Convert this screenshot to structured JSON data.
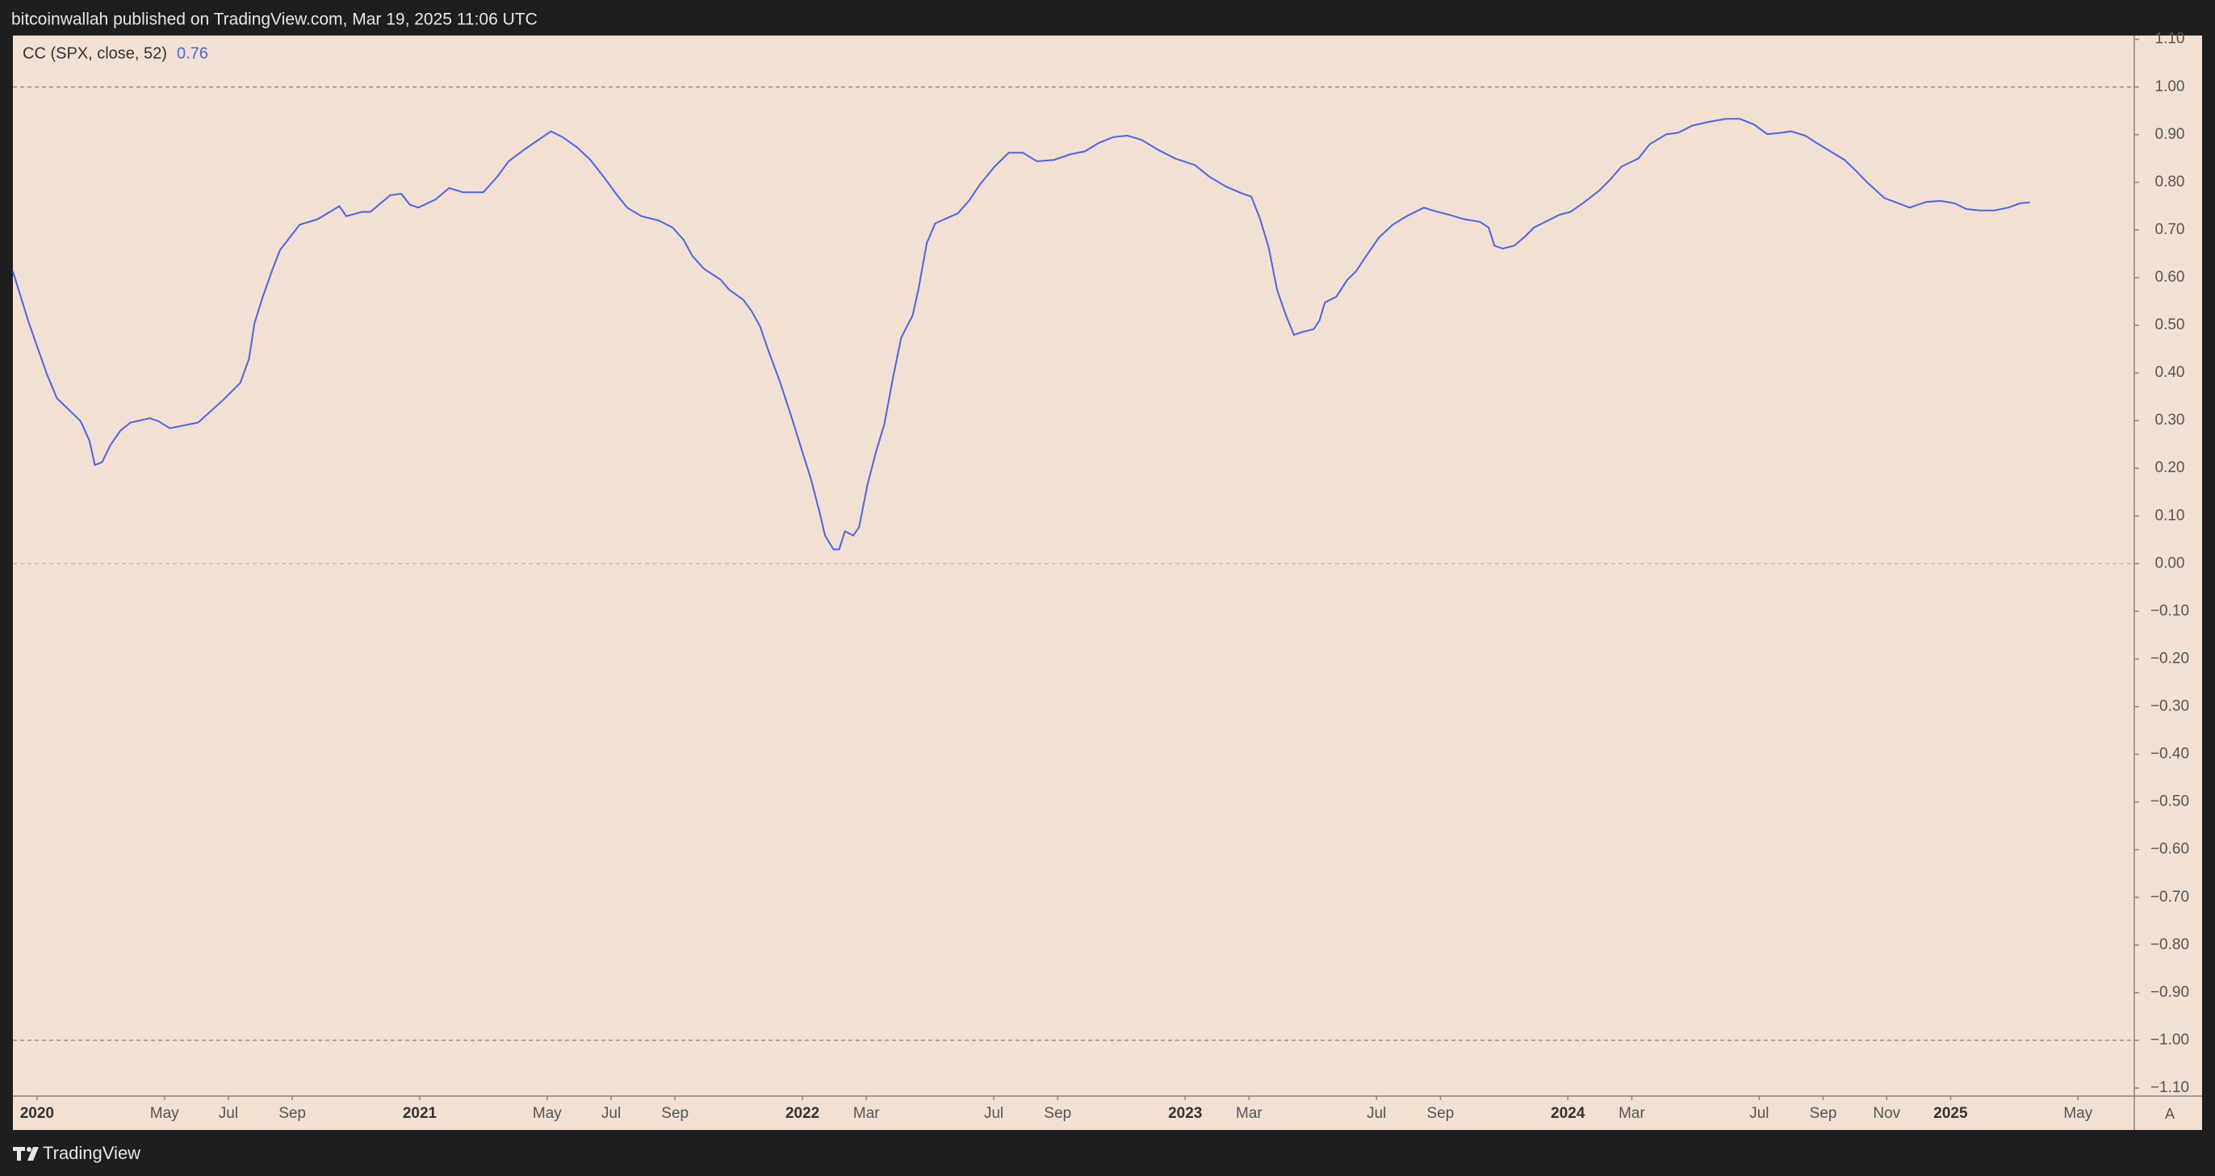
{
  "header": "bitcoinwallah published on TradingView.com, Mar 19, 2025 11:06 UTC",
  "footer": "TradingView",
  "scale_button": "A",
  "chart_data": {
    "type": "line",
    "legend_value": "0.76",
    "background": "#f2e1d3",
    "xlim": [
      2019.937,
      2025.48
    ],
    "ylim": [
      -1.117,
      1.108
    ],
    "hlines": [
      1,
      0,
      -1
    ],
    "xticks": [
      2020,
      {
        "value": 2020.333,
        "label": "May"
      },
      {
        "value": 2020.5,
        "label": "Jul"
      },
      {
        "value": 2020.667,
        "label": "Sep"
      },
      2021,
      {
        "value": 2021.333,
        "label": "May"
      },
      {
        "value": 2021.5,
        "label": "Jul"
      },
      {
        "value": 2021.667,
        "label": "Sep"
      },
      2022,
      {
        "value": 2022.167,
        "label": "Mar"
      },
      {
        "value": 2022.5,
        "label": "Jul"
      },
      {
        "value": 2022.667,
        "label": "Sep"
      },
      2023,
      {
        "value": 2023.167,
        "label": "Mar"
      },
      {
        "value": 2023.5,
        "label": "Jul"
      },
      {
        "value": 2023.667,
        "label": "Sep"
      },
      2024,
      {
        "value": 2024.167,
        "label": "Mar"
      },
      {
        "value": 2024.5,
        "label": "Jul"
      },
      {
        "value": 2024.667,
        "label": "Sep"
      },
      {
        "value": 2024.833,
        "label": "Nov"
      },
      2025,
      {
        "value": 2025.333,
        "label": "May"
      }
    ],
    "yticks": [
      {
        "value": 1.1,
        "label": "1.10"
      },
      {
        "value": 1.0,
        "label": "1.00"
      },
      {
        "value": 0.9,
        "label": "0.90"
      },
      {
        "value": 0.8,
        "label": "0.80"
      },
      {
        "value": 0.7,
        "label": "0.70"
      },
      {
        "value": 0.6,
        "label": "0.60"
      },
      {
        "value": 0.5,
        "label": "0.50"
      },
      {
        "value": 0.4,
        "label": "0.40"
      },
      {
        "value": 0.3,
        "label": "0.30"
      },
      {
        "value": 0.2,
        "label": "0.20"
      },
      {
        "value": 0.1,
        "label": "0.10"
      },
      {
        "value": 0,
        "label": "0.00"
      },
      {
        "value": -0.1,
        "label": "−0.10"
      },
      {
        "value": -0.2,
        "label": "−0.20"
      },
      {
        "value": -0.3,
        "label": "−0.30"
      },
      {
        "value": -0.4,
        "label": "−0.40"
      },
      {
        "value": -0.5,
        "label": "−0.50"
      },
      {
        "value": -0.6,
        "label": "−0.60"
      },
      {
        "value": -0.7,
        "label": "−0.70"
      },
      {
        "value": -0.8,
        "label": "−0.80"
      },
      {
        "value": -0.9,
        "label": "−0.90"
      },
      {
        "value": -1.0,
        "label": "−1.00"
      },
      {
        "value": -1.1,
        "label": "−1.10"
      }
    ],
    "series": [
      {
        "name": "CC (SPX, close, 52)",
        "color": "#4a63f0",
        "x": [
          2019.937,
          2019.978,
          2020.026,
          2020.052,
          2020.114,
          2020.137,
          2020.151,
          2020.17,
          2020.192,
          2020.218,
          2020.244,
          2020.295,
          2020.317,
          2020.347,
          2020.421,
          2020.487,
          2020.531,
          2020.554,
          2020.568,
          2020.59,
          2020.616,
          2020.635,
          2020.686,
          2020.734,
          2020.79,
          2020.808,
          2020.849,
          2020.871,
          2020.923,
          2020.952,
          2020.974,
          2020.996,
          2021.041,
          2021.077,
          2021.114,
          2021.166,
          2021.203,
          2021.232,
          2021.277,
          2021.343,
          2021.373,
          2021.41,
          2021.446,
          2021.483,
          2021.513,
          2021.542,
          2021.579,
          2021.624,
          2021.661,
          2021.69,
          2021.712,
          2021.742,
          2021.786,
          2021.808,
          2021.845,
          2021.867,
          2021.889,
          2021.911,
          2021.941,
          2021.97,
          2022.0,
          2022.022,
          2022.044,
          2022.059,
          2022.081,
          2022.096,
          2022.111,
          2022.133,
          2022.148,
          2022.17,
          2022.192,
          2022.214,
          2022.236,
          2022.258,
          2022.288,
          2022.303,
          2022.325,
          2022.347,
          2022.406,
          2022.435,
          2022.465,
          2022.502,
          2022.539,
          2022.576,
          2022.613,
          2022.657,
          2022.701,
          2022.738,
          2022.775,
          2022.812,
          2022.849,
          2022.886,
          2022.93,
          2022.974,
          2023.026,
          2023.063,
          2023.107,
          2023.151,
          2023.173,
          2023.196,
          2023.218,
          2023.24,
          2023.262,
          2023.284,
          2023.306,
          2023.336,
          2023.351,
          2023.365,
          2023.395,
          2023.424,
          2023.446,
          2023.476,
          2023.506,
          2023.542,
          2023.579,
          2023.624,
          2023.646,
          2023.69,
          2023.727,
          2023.771,
          2023.793,
          2023.808,
          2023.83,
          2023.86,
          2023.889,
          2023.911,
          2023.941,
          2023.978,
          2024.007,
          2024.044,
          2024.081,
          2024.111,
          2024.14,
          2024.184,
          2024.214,
          2024.258,
          2024.288,
          2024.325,
          2024.369,
          2024.413,
          2024.45,
          2024.487,
          2024.521,
          2024.557,
          2024.583,
          2024.62,
          2024.649,
          2024.686,
          2024.723,
          2024.753,
          2024.782,
          2024.827,
          2024.864,
          2024.893,
          2024.915,
          2024.937,
          2024.974,
          2025.011,
          2025.041,
          2025.077,
          2025.114,
          2025.151,
          2025.181,
          2025.207
        ],
        "values": [
          0.613,
          0.507,
          0.397,
          0.347,
          0.299,
          0.258,
          0.207,
          0.213,
          0.249,
          0.279,
          0.296,
          0.305,
          0.299,
          0.284,
          0.296,
          0.344,
          0.379,
          0.43,
          0.504,
          0.56,
          0.619,
          0.658,
          0.711,
          0.723,
          0.75,
          0.729,
          0.738,
          0.738,
          0.773,
          0.776,
          0.753,
          0.747,
          0.764,
          0.788,
          0.779,
          0.779,
          0.812,
          0.844,
          0.871,
          0.907,
          0.895,
          0.874,
          0.847,
          0.809,
          0.776,
          0.747,
          0.729,
          0.72,
          0.705,
          0.679,
          0.646,
          0.619,
          0.596,
          0.575,
          0.554,
          0.53,
          0.498,
          0.447,
          0.382,
          0.311,
          0.234,
          0.178,
          0.11,
          0.059,
          0.03,
          0.03,
          0.068,
          0.059,
          0.077,
          0.166,
          0.234,
          0.293,
          0.388,
          0.474,
          0.521,
          0.575,
          0.673,
          0.714,
          0.735,
          0.761,
          0.797,
          0.833,
          0.862,
          0.862,
          0.844,
          0.847,
          0.859,
          0.865,
          0.883,
          0.895,
          0.898,
          0.889,
          0.868,
          0.85,
          0.836,
          0.812,
          0.791,
          0.776,
          0.77,
          0.723,
          0.664,
          0.575,
          0.524,
          0.48,
          0.486,
          0.492,
          0.51,
          0.548,
          0.56,
          0.596,
          0.613,
          0.649,
          0.684,
          0.711,
          0.729,
          0.747,
          0.741,
          0.732,
          0.723,
          0.717,
          0.705,
          0.667,
          0.661,
          0.667,
          0.687,
          0.705,
          0.717,
          0.732,
          0.738,
          0.759,
          0.782,
          0.806,
          0.833,
          0.85,
          0.88,
          0.901,
          0.904,
          0.919,
          0.927,
          0.933,
          0.933,
          0.921,
          0.901,
          0.904,
          0.907,
          0.898,
          0.883,
          0.865,
          0.847,
          0.824,
          0.8,
          0.767,
          0.756,
          0.747,
          0.753,
          0.759,
          0.761,
          0.756,
          0.744,
          0.741,
          0.741,
          0.747,
          0.756,
          0.758
        ]
      }
    ]
  }
}
